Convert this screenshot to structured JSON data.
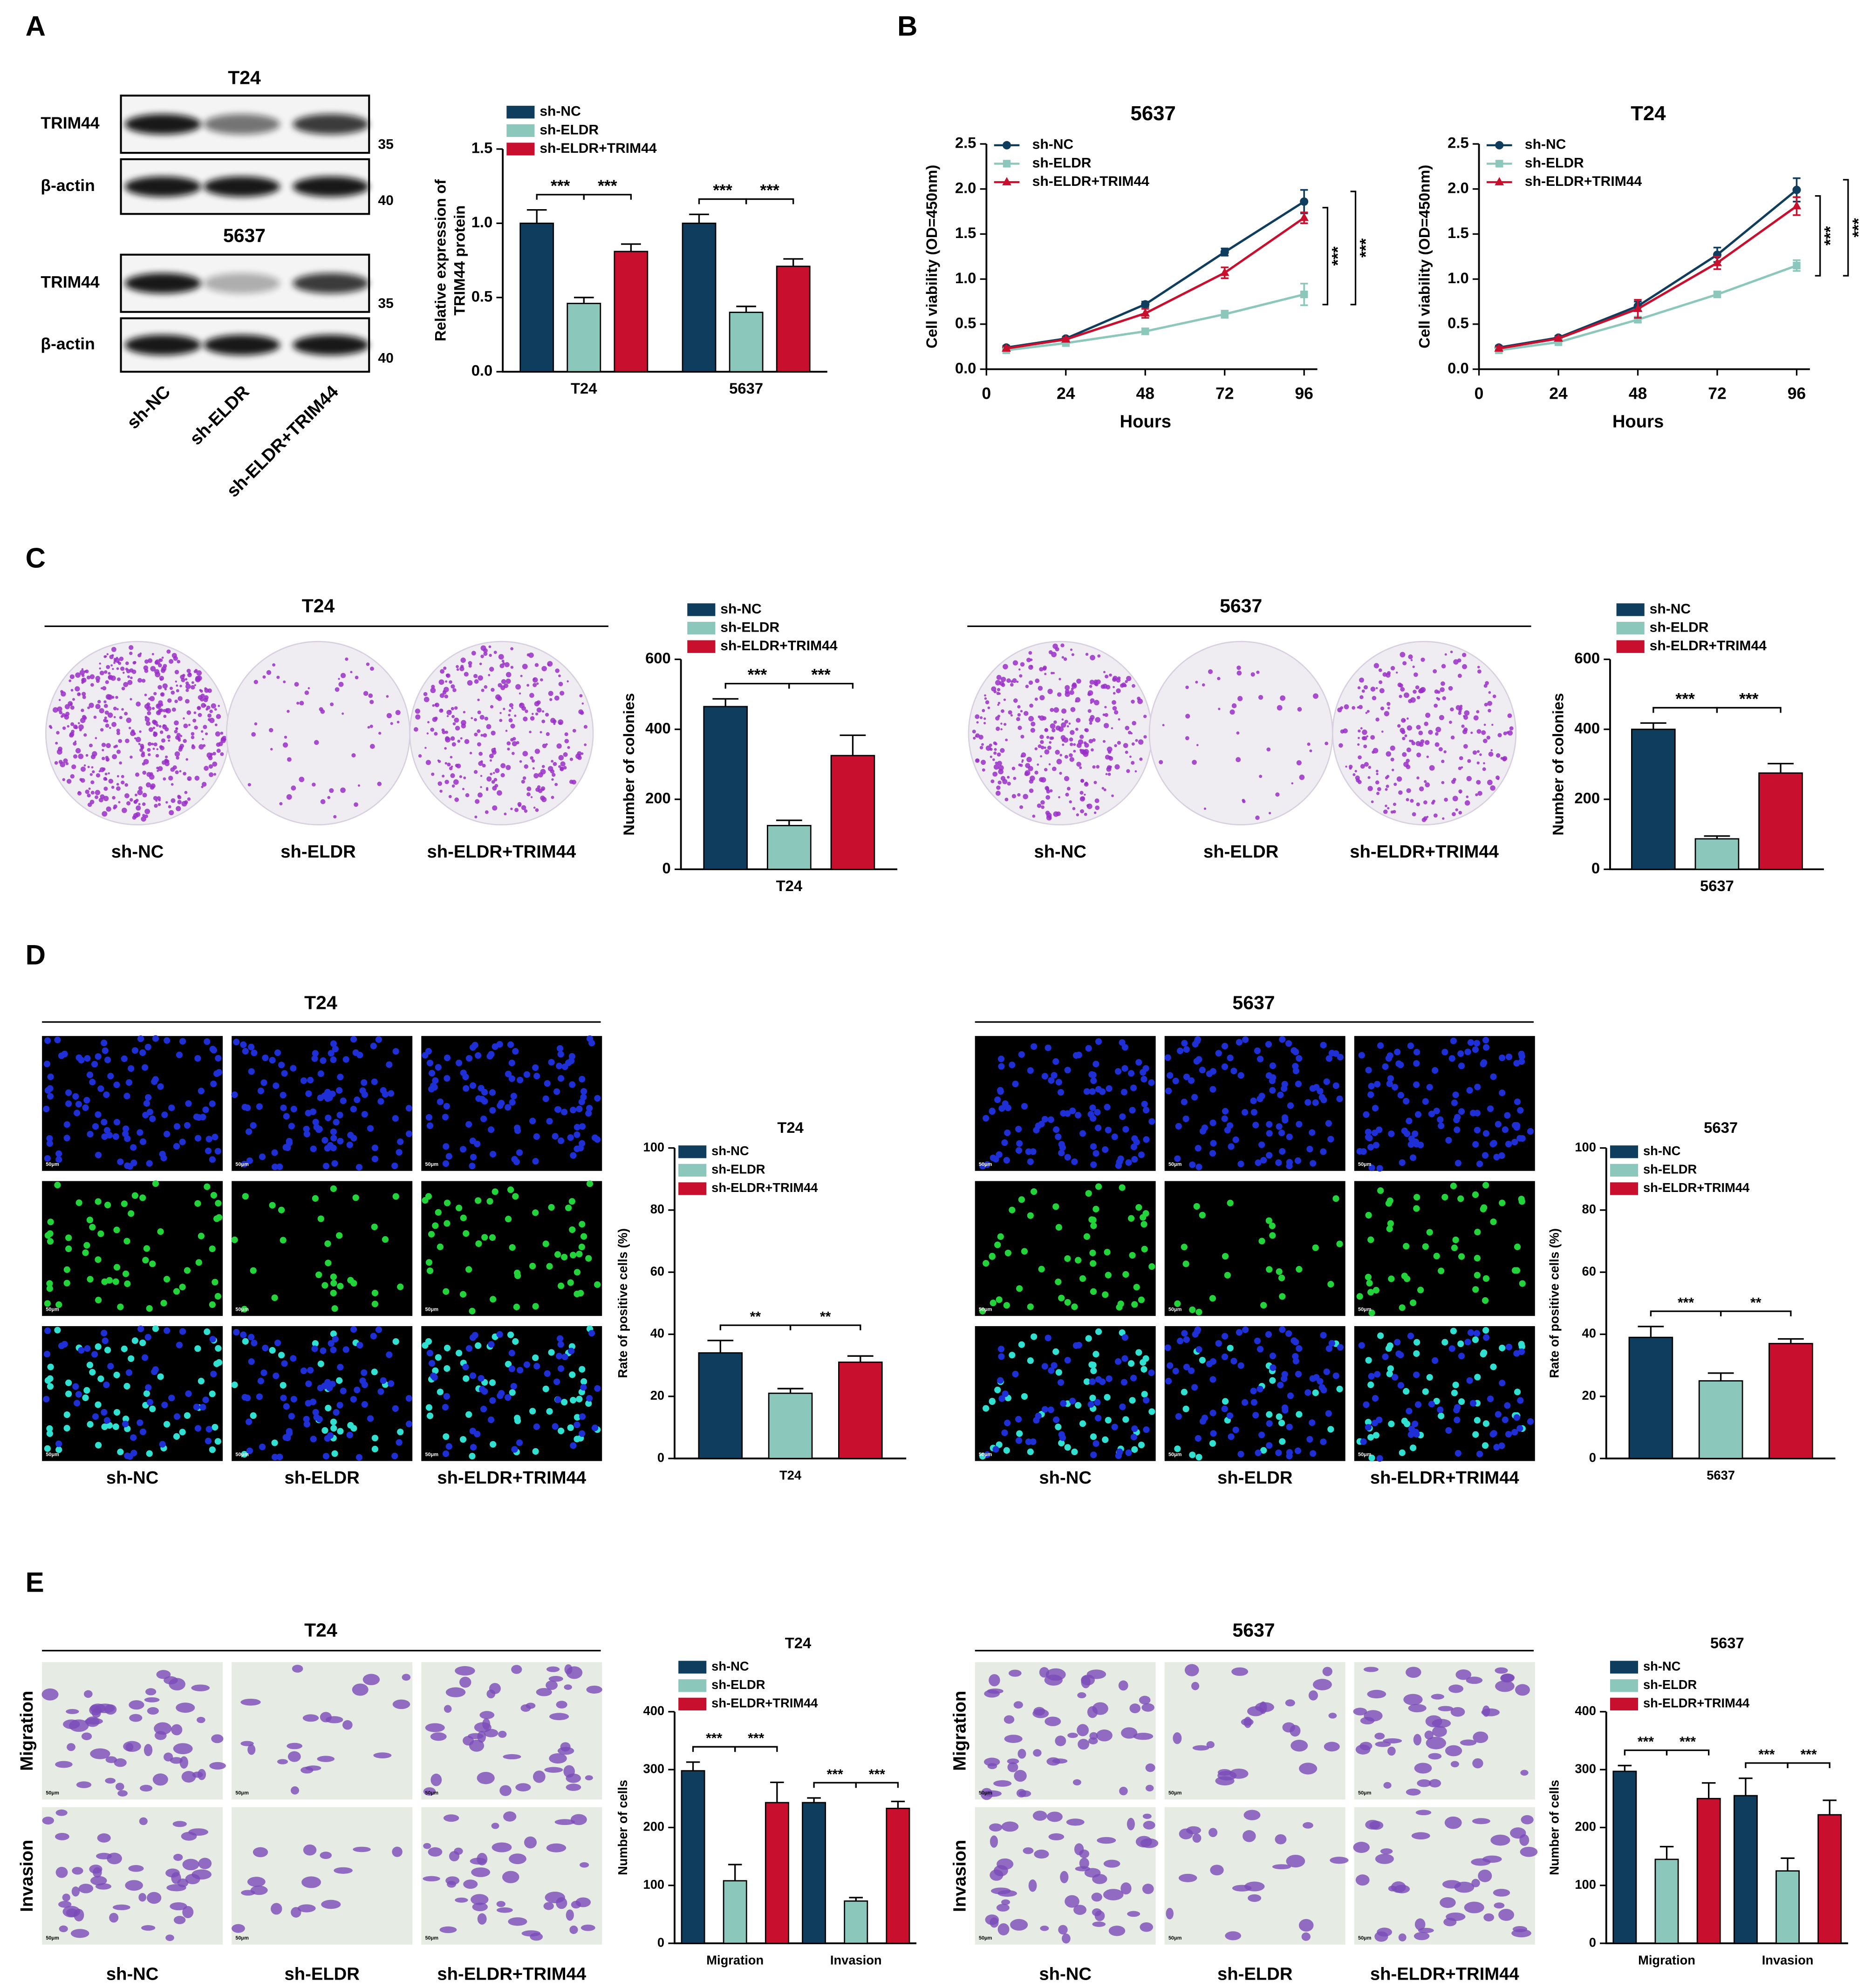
{
  "figure": {
    "panel_labels": [
      "A",
      "B",
      "C",
      "D",
      "E"
    ],
    "cell_lines": [
      "T24",
      "5637"
    ],
    "proteins": [
      "TRIM44",
      "β-actin"
    ],
    "markers": [
      35,
      40
    ],
    "groups": [
      "sh-NC",
      "sh-ELDR",
      "sh-ELDR+TRIM44"
    ],
    "rows": [
      "Migration",
      "Invasion"
    ],
    "scale_bar": "50μm"
  },
  "chart_data": [
    {
      "type": "bar",
      "ylabel": [
        "Relative expression of",
        "TRIM44 protein"
      ],
      "categories": [
        "T24",
        "5637"
      ],
      "series": [
        {
          "name": "sh-NC",
          "color": "#0f3d5e",
          "values": [
            1.0,
            1.0
          ],
          "errors": [
            0.09,
            0.06
          ]
        },
        {
          "name": "sh-ELDR",
          "color": "#8cc7bc",
          "values": [
            0.46,
            0.4
          ],
          "errors": [
            0.04,
            0.04
          ]
        },
        {
          "name": "sh-ELDR+TRIM44",
          "color": "#c8102e",
          "values": [
            0.81,
            0.71
          ],
          "errors": [
            0.05,
            0.05
          ]
        }
      ],
      "ylim": [
        0,
        1.5
      ],
      "yticks": [
        {
          "value": 0,
          "label": "0.0"
        },
        0.5,
        {
          "value": 1,
          "label": "1.0"
        },
        1.5
      ],
      "annotations": [
        "***",
        "***",
        "***",
        "***"
      ]
    },
    {
      "type": "line",
      "title": "5637",
      "xlabel": "Hours",
      "ylabel": "Cell viability (OD=450nm)",
      "x": [
        6,
        24,
        48,
        72,
        96
      ],
      "series": [
        {
          "name": "sh-NC",
          "color": "#0f3d5e",
          "marker": "circle",
          "values": [
            0.24,
            0.34,
            0.72,
            1.3,
            1.86
          ],
          "errors": [
            0.02,
            0.02,
            0.03,
            0.04,
            0.13
          ]
        },
        {
          "name": "sh-ELDR",
          "color": "#8cc7bc",
          "marker": "square",
          "values": [
            0.21,
            0.29,
            0.42,
            0.61,
            0.83
          ],
          "errors": [
            0.02,
            0.02,
            0.03,
            0.04,
            0.12
          ]
        },
        {
          "name": "sh-ELDR+TRIM44",
          "color": "#c8102e",
          "marker": "triangle",
          "values": [
            0.23,
            0.33,
            0.62,
            1.07,
            1.68
          ],
          "errors": [
            0.02,
            0.02,
            0.05,
            0.06,
            0.06
          ]
        }
      ],
      "xlim": [
        0,
        100
      ],
      "xticks": [
        0,
        24,
        48,
        72,
        96
      ],
      "ylim": [
        0,
        2.5
      ],
      "yticks": [
        {
          "value": 0,
          "label": "0.0"
        },
        0.5,
        {
          "value": 1,
          "label": "1.0"
        },
        1.5,
        {
          "value": 2,
          "label": "2.0"
        },
        2.5
      ],
      "annotations": [
        "***",
        "***"
      ]
    },
    {
      "type": "line",
      "title": "T24",
      "xlabel": "Hours",
      "ylabel": "Cell viability (OD=450nm)",
      "x": [
        6,
        24,
        48,
        72,
        96
      ],
      "series": [
        {
          "name": "sh-NC",
          "color": "#0f3d5e",
          "marker": "circle",
          "values": [
            0.24,
            0.35,
            0.7,
            1.27,
            1.99
          ],
          "errors": [
            0.02,
            0.02,
            0.05,
            0.08,
            0.13
          ]
        },
        {
          "name": "sh-ELDR",
          "color": "#8cc7bc",
          "marker": "square",
          "values": [
            0.21,
            0.3,
            0.55,
            0.83,
            1.15
          ],
          "errors": [
            0.02,
            0.02,
            0.03,
            0.03,
            0.06
          ]
        },
        {
          "name": "sh-ELDR+TRIM44",
          "color": "#c8102e",
          "marker": "triangle",
          "values": [
            0.23,
            0.34,
            0.67,
            1.18,
            1.81
          ],
          "errors": [
            0.02,
            0.02,
            0.1,
            0.07,
            0.1
          ]
        }
      ],
      "xlim": [
        0,
        100
      ],
      "xticks": [
        0,
        24,
        48,
        72,
        96
      ],
      "ylim": [
        0,
        2.5
      ],
      "yticks": [
        {
          "value": 0,
          "label": "0.0"
        },
        0.5,
        {
          "value": 1,
          "label": "1.0"
        },
        1.5,
        {
          "value": 2,
          "label": "2.0"
        },
        2.5
      ],
      "annotations": [
        "***",
        "***"
      ]
    },
    {
      "type": "bar",
      "ylabel": "Number of colonies",
      "categories": [
        "T24"
      ],
      "series": [
        {
          "name": "sh-NC",
          "color": "#0f3d5e",
          "values": [
            465
          ],
          "errors": [
            22
          ]
        },
        {
          "name": "sh-ELDR",
          "color": "#8cc7bc",
          "values": [
            125
          ],
          "errors": [
            15
          ]
        },
        {
          "name": "sh-ELDR+TRIM44",
          "color": "#c8102e",
          "values": [
            325
          ],
          "errors": [
            58
          ]
        }
      ],
      "ylim": [
        0,
        600
      ],
      "yticks": [
        0,
        200,
        400,
        600
      ],
      "annotations": [
        "***",
        "***"
      ]
    },
    {
      "type": "bar",
      "ylabel": "Number of colonies",
      "categories": [
        "5637"
      ],
      "series": [
        {
          "name": "sh-NC",
          "color": "#0f3d5e",
          "values": [
            400
          ],
          "errors": [
            18
          ]
        },
        {
          "name": "sh-ELDR",
          "color": "#8cc7bc",
          "values": [
            87
          ],
          "errors": [
            8
          ]
        },
        {
          "name": "sh-ELDR+TRIM44",
          "color": "#c8102e",
          "values": [
            275
          ],
          "errors": [
            27
          ]
        }
      ],
      "ylim": [
        0,
        600
      ],
      "yticks": [
        0,
        200,
        400,
        600
      ],
      "annotations": [
        "***",
        "***"
      ]
    },
    {
      "type": "bar",
      "title": "T24",
      "ylabel": "Rate of positive cells (%)",
      "categories": [
        "T24"
      ],
      "series": [
        {
          "name": "sh-NC",
          "color": "#0f3d5e",
          "values": [
            34
          ],
          "errors": [
            4
          ]
        },
        {
          "name": "sh-ELDR",
          "color": "#8cc7bc",
          "values": [
            21
          ],
          "errors": [
            1.5
          ]
        },
        {
          "name": "sh-ELDR+TRIM44",
          "color": "#c8102e",
          "values": [
            31
          ],
          "errors": [
            2
          ]
        }
      ],
      "ylim": [
        0,
        100
      ],
      "yticks": [
        0,
        20,
        40,
        60,
        80,
        100
      ],
      "annotations": [
        "**",
        "**"
      ]
    },
    {
      "type": "bar",
      "title": "5637",
      "ylabel": "Rate of positive cells (%)",
      "categories": [
        "5637"
      ],
      "series": [
        {
          "name": "sh-NC",
          "color": "#0f3d5e",
          "values": [
            39
          ],
          "errors": [
            3.5
          ]
        },
        {
          "name": "sh-ELDR",
          "color": "#8cc7bc",
          "values": [
            25
          ],
          "errors": [
            2.5
          ]
        },
        {
          "name": "sh-ELDR+TRIM44",
          "color": "#c8102e",
          "values": [
            37
          ],
          "errors": [
            1.5
          ]
        }
      ],
      "ylim": [
        0,
        100
      ],
      "yticks": [
        0,
        20,
        40,
        60,
        80,
        100
      ],
      "annotations": [
        "***",
        "**"
      ]
    },
    {
      "type": "bar",
      "title": "T24",
      "ylabel": "Number of cells",
      "categories": [
        "Migration",
        "Invasion"
      ],
      "series": [
        {
          "name": "sh-NC",
          "color": "#0f3d5e",
          "values": [
            298,
            243
          ],
          "errors": [
            15,
            8
          ]
        },
        {
          "name": "sh-ELDR",
          "color": "#8cc7bc",
          "values": [
            108,
            73
          ],
          "errors": [
            28,
            6
          ]
        },
        {
          "name": "sh-ELDR+TRIM44",
          "color": "#c8102e",
          "values": [
            243,
            233
          ],
          "errors": [
            35,
            12
          ]
        }
      ],
      "ylim": [
        0,
        400
      ],
      "yticks": [
        0,
        100,
        200,
        300,
        400
      ],
      "annotations": [
        "***",
        "***",
        "***",
        "***"
      ]
    },
    {
      "type": "bar",
      "title": "5637",
      "ylabel": "Number of cells",
      "categories": [
        "Migration",
        "Invasion"
      ],
      "series": [
        {
          "name": "sh-NC",
          "color": "#0f3d5e",
          "values": [
            297,
            255
          ],
          "errors": [
            10,
            30
          ]
        },
        {
          "name": "sh-ELDR",
          "color": "#8cc7bc",
          "values": [
            145,
            125
          ],
          "errors": [
            22,
            22
          ]
        },
        {
          "name": "sh-ELDR+TRIM44",
          "color": "#c8102e",
          "values": [
            250,
            222
          ],
          "errors": [
            27,
            25
          ]
        }
      ],
      "ylim": [
        0,
        400
      ],
      "yticks": [
        0,
        100,
        200,
        300,
        400
      ],
      "annotations": [
        "***",
        "***",
        "***",
        "***"
      ]
    }
  ]
}
